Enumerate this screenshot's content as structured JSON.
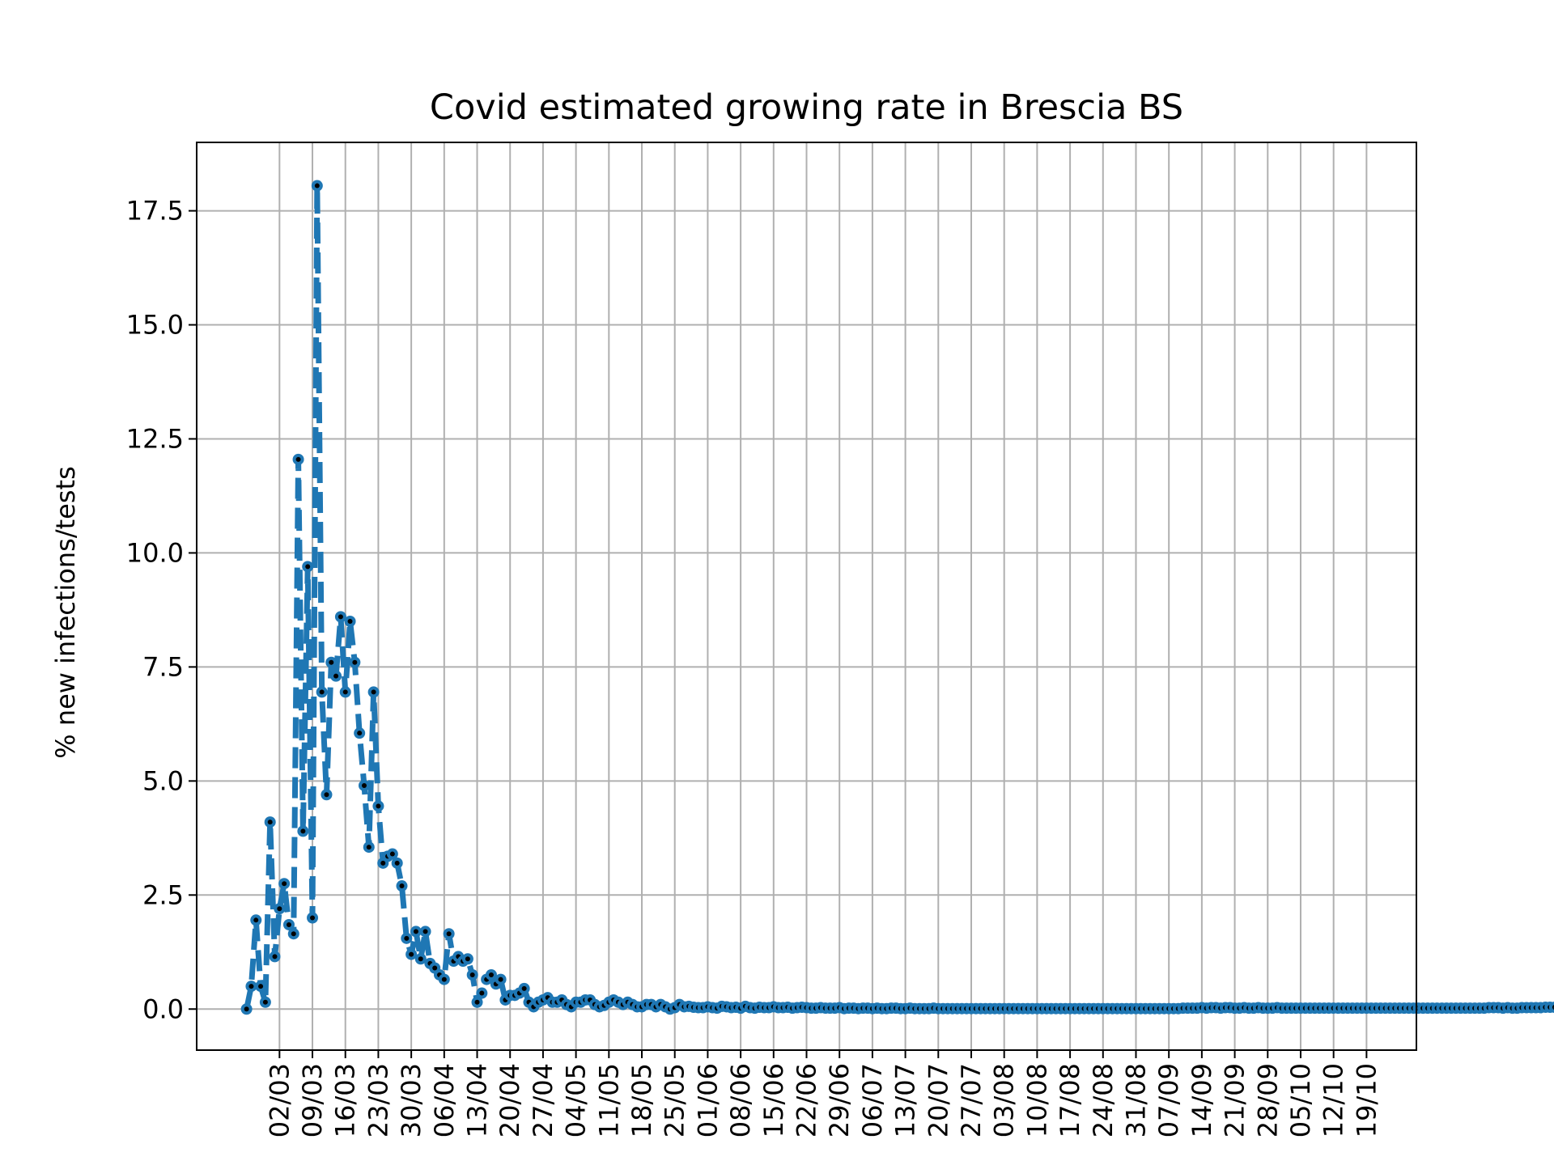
{
  "chart_data": {
    "type": "line",
    "title": "Covid estimated growing rate in Brescia BS",
    "xlabel": "",
    "ylabel": "% new infections/tests",
    "ylim": [
      -0.9,
      19.0
    ],
    "grid": true,
    "line_color": "#1f77b4",
    "marker_color": "#000000",
    "y_ticks": [
      0.0,
      2.5,
      5.0,
      7.5,
      10.0,
      12.5,
      15.0,
      17.5
    ],
    "y_tick_labels": [
      "0.0",
      "2.5",
      "5.0",
      "7.5",
      "10.0",
      "12.5",
      "15.0",
      "17.5"
    ],
    "x_tick_dates": [
      "2020-03-02",
      "2020-03-09",
      "2020-03-16",
      "2020-03-23",
      "2020-03-30",
      "2020-04-06",
      "2020-04-13",
      "2020-04-20",
      "2020-04-27",
      "2020-05-04",
      "2020-05-11",
      "2020-05-18",
      "2020-05-25",
      "2020-06-01",
      "2020-06-08",
      "2020-06-15",
      "2020-06-22",
      "2020-06-29",
      "2020-07-06",
      "2020-07-13",
      "2020-07-20",
      "2020-07-27",
      "2020-08-03",
      "2020-08-10",
      "2020-08-17",
      "2020-08-24",
      "2020-08-31",
      "2020-09-07",
      "2020-09-14",
      "2020-09-21",
      "2020-09-28",
      "2020-10-05",
      "2020-10-12",
      "2020-10-19"
    ],
    "x_tick_labels": [
      "02/03",
      "09/03",
      "16/03",
      "23/03",
      "30/03",
      "06/04",
      "13/04",
      "20/04",
      "27/04",
      "04/05",
      "11/05",
      "18/05",
      "25/05",
      "01/06",
      "08/06",
      "15/06",
      "22/06",
      "29/06",
      "06/07",
      "13/07",
      "20/07",
      "27/07",
      "03/08",
      "10/08",
      "17/08",
      "24/08",
      "31/08",
      "07/09",
      "14/09",
      "21/09",
      "28/09",
      "05/10",
      "12/10",
      "19/10"
    ],
    "x_start_date": "2020-02-24",
    "x_end_date": "2020-10-19",
    "values": [
      0.0,
      0.5,
      1.95,
      0.5,
      0.15,
      4.1,
      1.15,
      2.2,
      2.75,
      1.85,
      1.65,
      12.05,
      3.9,
      9.7,
      2.0,
      18.05,
      6.95,
      4.7,
      7.6,
      7.3,
      8.6,
      6.95,
      8.5,
      7.6,
      6.05,
      4.9,
      3.55,
      6.95,
      4.45,
      3.2,
      3.35,
      3.4,
      3.2,
      2.7,
      1.55,
      1.2,
      1.7,
      1.1,
      1.7,
      1.0,
      0.9,
      0.75,
      0.65,
      1.65,
      1.05,
      1.15,
      1.05,
      1.1,
      0.75,
      0.15,
      0.35,
      0.65,
      0.75,
      0.55,
      0.65,
      0.2,
      0.3,
      0.3,
      0.35,
      0.45,
      0.15,
      0.05,
      0.15,
      0.2,
      0.25,
      0.15,
      0.15,
      0.2,
      0.1,
      0.05,
      0.15,
      0.15,
      0.2,
      0.2,
      0.1,
      0.05,
      0.08,
      0.15,
      0.2,
      0.15,
      0.1,
      0.15,
      0.1,
      0.05,
      0.05,
      0.1,
      0.1,
      0.05,
      0.1,
      0.05,
      0.0,
      0.03,
      0.1,
      0.05,
      0.06,
      0.04,
      0.03,
      0.03,
      0.05,
      0.03,
      0.02,
      0.06,
      0.05,
      0.03,
      0.04,
      0.02,
      0.06,
      0.03,
      0.02,
      0.04,
      0.03,
      0.03,
      0.05,
      0.03,
      0.03,
      0.04,
      0.02,
      0.03,
      0.04,
      0.03,
      0.02,
      0.02,
      0.03,
      0.02,
      0.02,
      0.02,
      0.03,
      0.01,
      0.02,
      0.02,
      0.01,
      0.02,
      0.02,
      0.01,
      0.02,
      0.01,
      0.01,
      0.02,
      0.02,
      0.01,
      0.01,
      0.02,
      0.01,
      0.01,
      0.01,
      0.01,
      0.02,
      0.01,
      0.01,
      0.01,
      0.01,
      0.01,
      0.01,
      0.01,
      0.01,
      0.01,
      0.01,
      0.01,
      0.01,
      0.01,
      0.01,
      0.01,
      0.01,
      0.01,
      0.01,
      0.01,
      0.01,
      0.01,
      0.01,
      0.01,
      0.01,
      0.01,
      0.01,
      0.01,
      0.01,
      0.01,
      0.01,
      0.01,
      0.01,
      0.01,
      0.01,
      0.01,
      0.01,
      0.01,
      0.01,
      0.01,
      0.01,
      0.01,
      0.01,
      0.01,
      0.01,
      0.01,
      0.01,
      0.01,
      0.01,
      0.01,
      0.01,
      0.01,
      0.01,
      0.02,
      0.02,
      0.02,
      0.02,
      0.03,
      0.02,
      0.03,
      0.03,
      0.02,
      0.03,
      0.03,
      0.02,
      0.02,
      0.03,
      0.02,
      0.02,
      0.03,
      0.02,
      0.02,
      0.02,
      0.03,
      0.02,
      0.02,
      0.02,
      0.02,
      0.02,
      0.02,
      0.02,
      0.02,
      0.02,
      0.02,
      0.02,
      0.02,
      0.02,
      0.02,
      0.02,
      0.02,
      0.02,
      0.02,
      0.02,
      0.02,
      0.02,
      0.02,
      0.02,
      0.02,
      0.02,
      0.02,
      0.02,
      0.02,
      0.02,
      0.02,
      0.02,
      0.02,
      0.02,
      0.02,
      0.02,
      0.02,
      0.02,
      0.02,
      0.02,
      0.02,
      0.02,
      0.02,
      0.02,
      0.02,
      0.03,
      0.03,
      0.03,
      0.02,
      0.03,
      0.02,
      0.02,
      0.03,
      0.03,
      0.03,
      0.03,
      0.03,
      0.04,
      0.04,
      0.04,
      0.03,
      0.04,
      0.04,
      0.04,
      0.03,
      0.04,
      0.04,
      0.04,
      0.04
    ]
  }
}
